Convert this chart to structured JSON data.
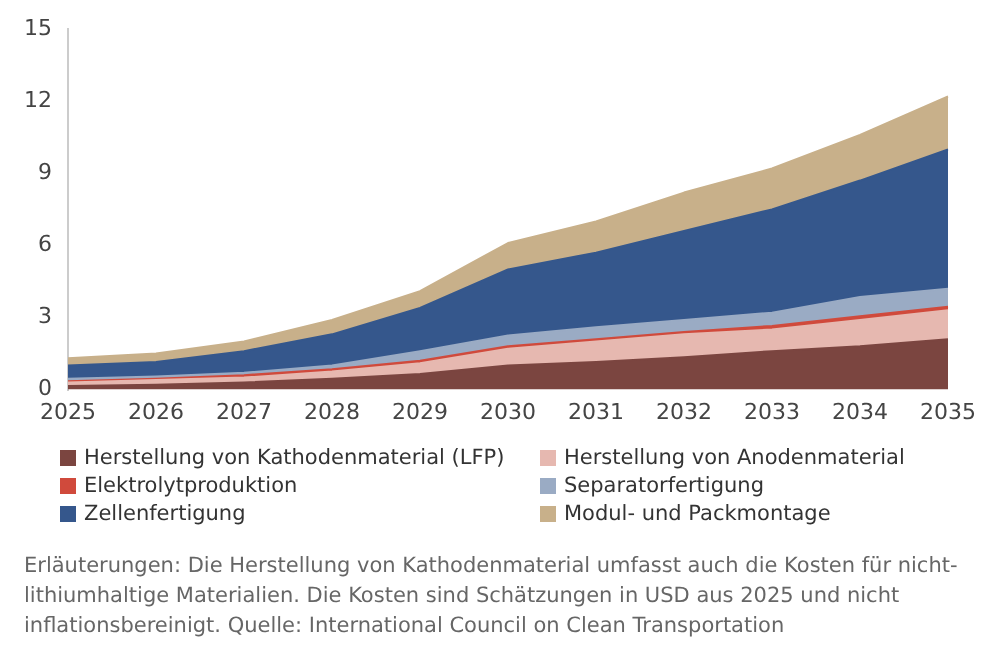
{
  "chart_data": {
    "type": "area",
    "stacked": true,
    "categories": [
      "2025",
      "2026",
      "2027",
      "2028",
      "2029",
      "2030",
      "2031",
      "2032",
      "2033",
      "2034",
      "2035"
    ],
    "series": [
      {
        "name": "Herstellung von Kathodenmaterial (LFP)",
        "color": "#7b4540",
        "values": [
          0.15,
          0.2,
          0.3,
          0.45,
          0.65,
          1.0,
          1.15,
          1.35,
          1.6,
          1.8,
          2.1
        ]
      },
      {
        "name": "Herstellung von Anodenmaterial",
        "color": "#e6b8b0",
        "values": [
          0.15,
          0.2,
          0.2,
          0.3,
          0.45,
          0.7,
          0.85,
          0.95,
          0.9,
          1.1,
          1.2
        ]
      },
      {
        "name": "Elektrolytproduktion",
        "color": "#d04a3c",
        "values": [
          0.05,
          0.05,
          0.1,
          0.1,
          0.1,
          0.1,
          0.1,
          0.1,
          0.15,
          0.15,
          0.15
        ]
      },
      {
        "name": "Separatorfertigung",
        "color": "#9aabc4",
        "values": [
          0.1,
          0.1,
          0.1,
          0.15,
          0.4,
          0.45,
          0.5,
          0.5,
          0.55,
          0.8,
          0.75
        ]
      },
      {
        "name": "Zellenfertigung",
        "color": "#35578c",
        "values": [
          0.55,
          0.6,
          0.9,
          1.3,
          1.8,
          2.75,
          3.1,
          3.7,
          4.3,
          4.85,
          5.8
        ]
      },
      {
        "name": "Modul- und Packmontage",
        "color": "#c8b08a",
        "values": [
          0.3,
          0.35,
          0.4,
          0.6,
          0.7,
          1.1,
          1.3,
          1.6,
          1.7,
          1.9,
          2.2
        ]
      }
    ],
    "ylim": [
      0,
      15
    ],
    "yticks": [
      0,
      3,
      6,
      9,
      12,
      15
    ],
    "grid": false,
    "legend": "bottom",
    "annotations": [
      "Erläuterungen: Die Herstellung von Kathodenmaterial umfasst auch die Kosten für nicht-lithiumhaltige Materialien. Die Kosten sind Schätzungen in USD aus 2025 und nicht inflationsbereinigt. Quelle: International Council on Clean Transportation"
    ]
  }
}
